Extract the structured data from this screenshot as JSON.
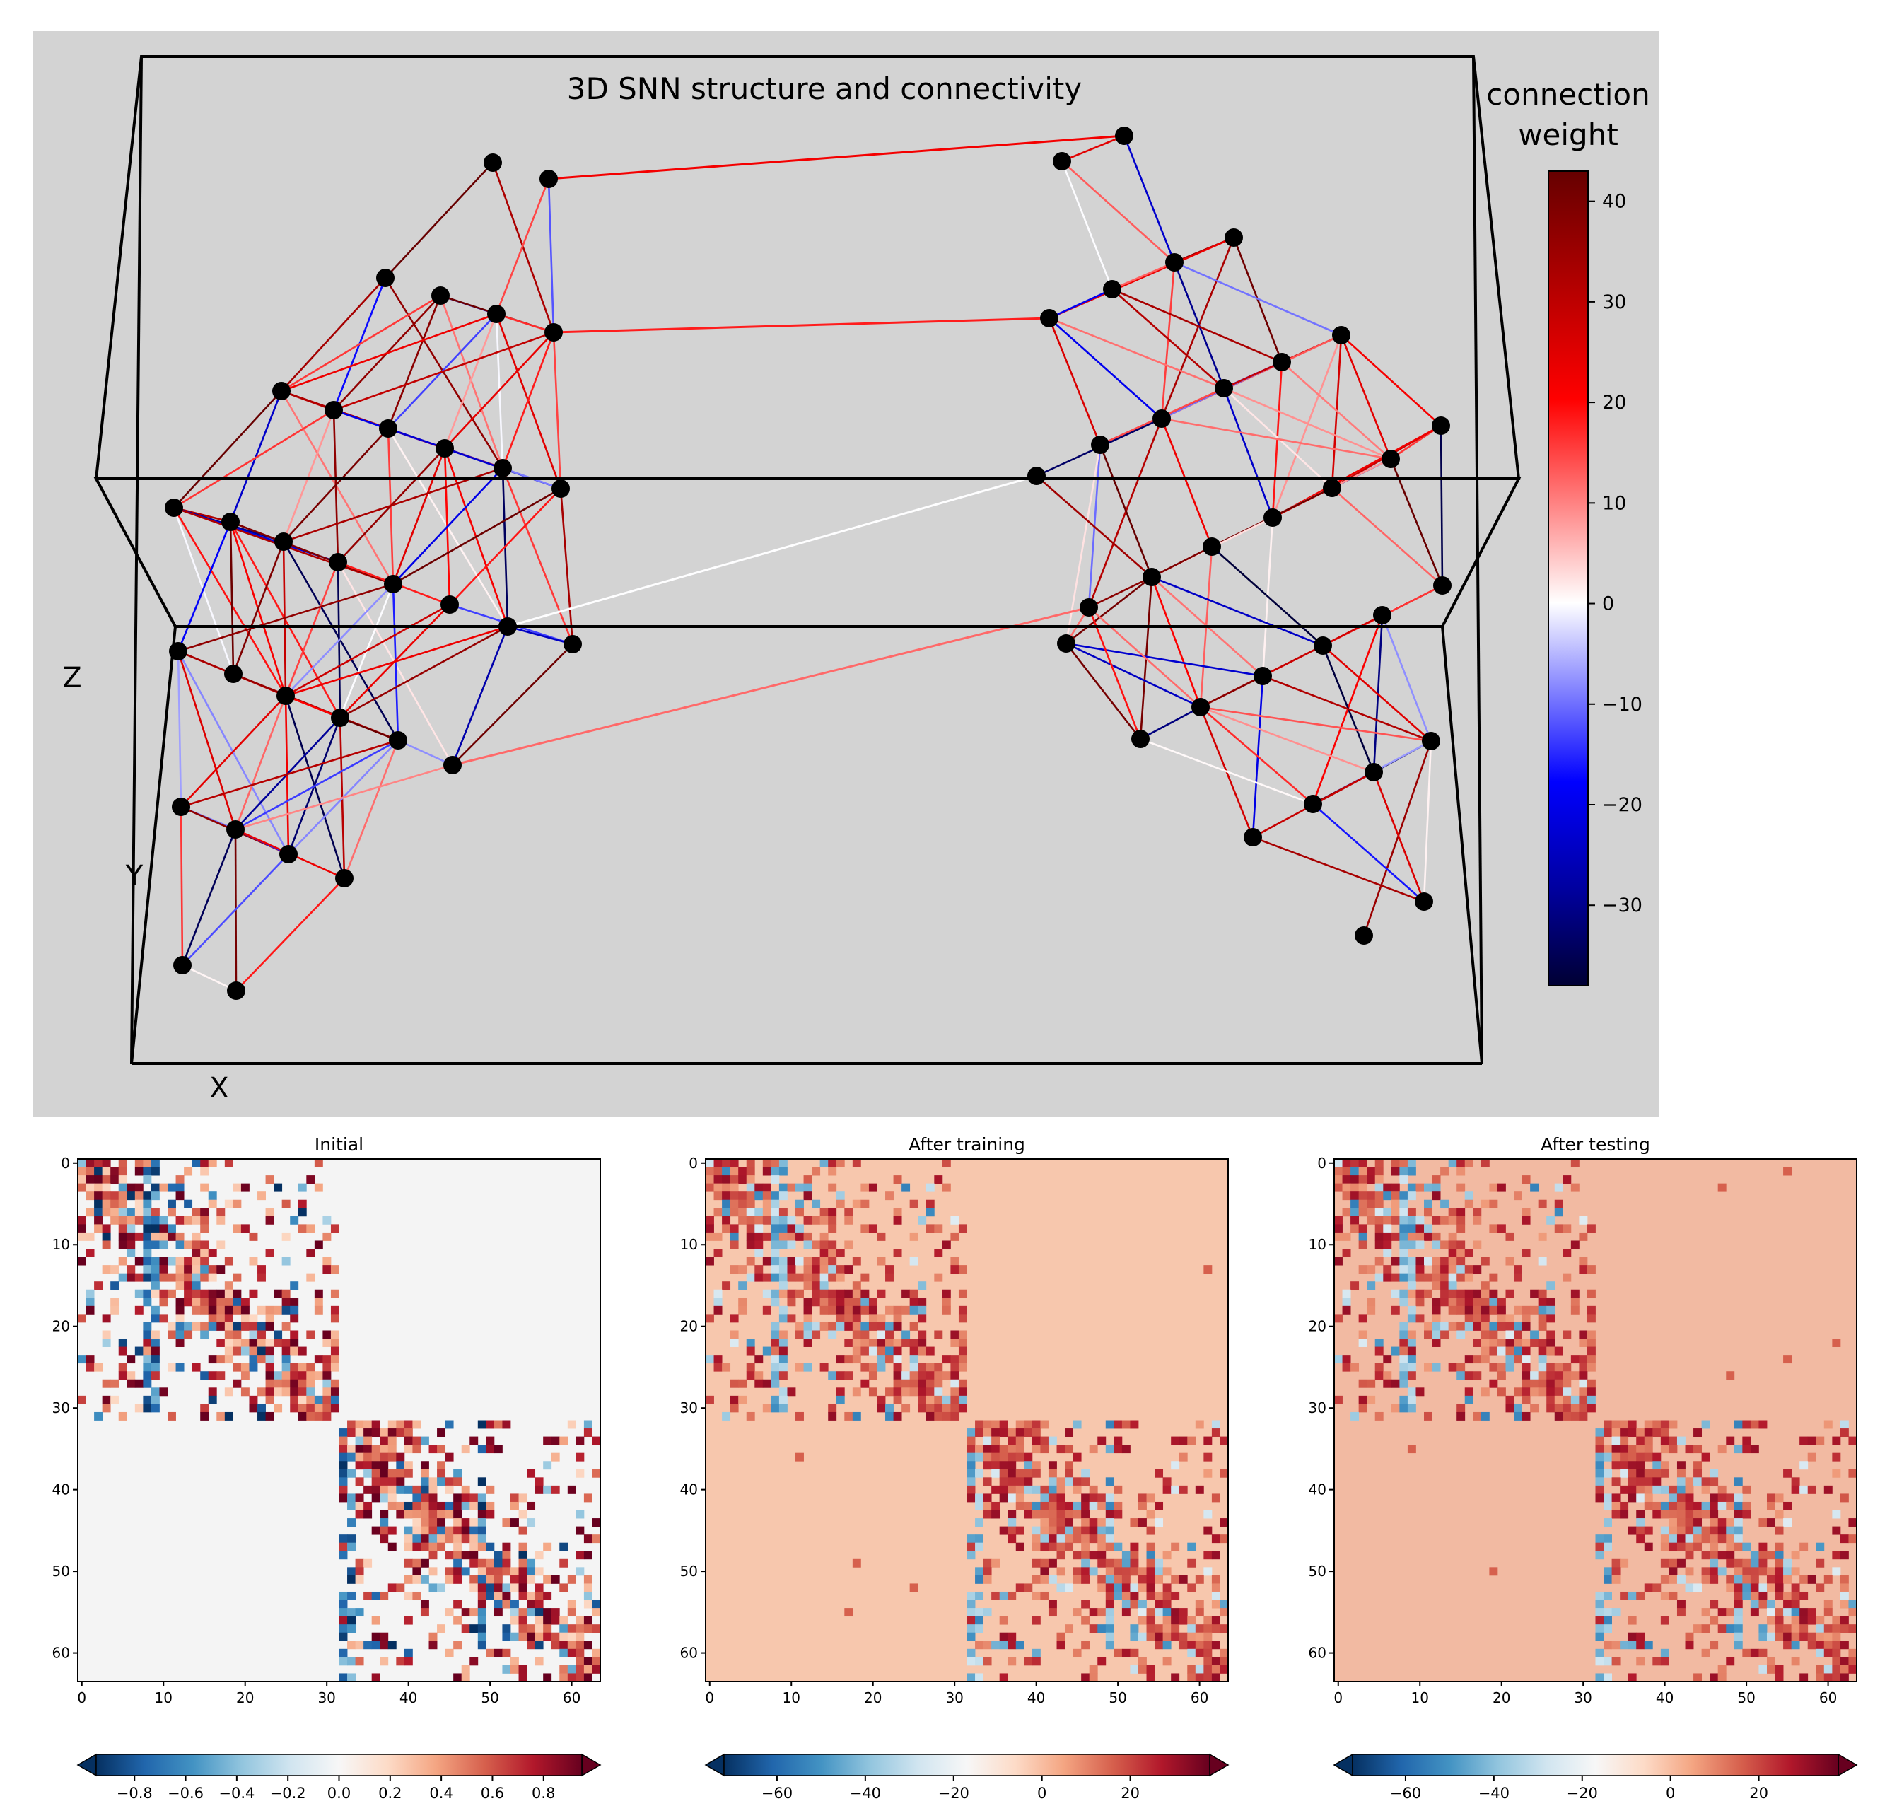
{
  "chart_data": [
    {
      "type": "network-3d",
      "title": "3D SNN structure and connectivity",
      "axis_labels": {
        "x": "X",
        "y": "Y",
        "z": "Z"
      },
      "colorbar": {
        "label_line1": "connection",
        "label_line2": "weight",
        "range": [
          -38,
          43
        ],
        "ticks": [
          40,
          30,
          20,
          10,
          0,
          -10,
          -20,
          -30
        ],
        "tick_labels": [
          "40",
          "30",
          "20",
          "10",
          "0",
          "−10",
          "−20",
          "−30"
        ]
      },
      "neurons_per_cluster": 32,
      "clusters": 2
    },
    {
      "type": "heatmap",
      "title": "Initial",
      "matrix_size": 64,
      "x_ticks": [
        0,
        10,
        20,
        30,
        40,
        50,
        60
      ],
      "y_ticks": [
        0,
        10,
        20,
        30,
        40,
        50,
        60
      ],
      "colorbar": {
        "range": [
          -0.95,
          0.95
        ],
        "ticks": [
          -0.8,
          -0.6,
          -0.4,
          -0.2,
          0.0,
          0.2,
          0.4,
          0.6,
          0.8
        ],
        "tick_labels": [
          "−0.8",
          "−0.6",
          "−0.4",
          "−0.2",
          "0.0",
          "0.2",
          "0.4",
          "0.6",
          "0.8"
        ]
      }
    },
    {
      "type": "heatmap",
      "title": "After training",
      "matrix_size": 64,
      "x_ticks": [
        0,
        10,
        20,
        30,
        40,
        50,
        60
      ],
      "y_ticks": [
        0,
        10,
        20,
        30,
        40,
        50,
        60
      ],
      "colorbar": {
        "range": [
          -72,
          38
        ],
        "ticks": [
          -60,
          -40,
          -20,
          0,
          20
        ],
        "tick_labels": [
          "−60",
          "−40",
          "−20",
          "0",
          "20"
        ]
      }
    },
    {
      "type": "heatmap",
      "title": "After testing",
      "matrix_size": 64,
      "x_ticks": [
        0,
        10,
        20,
        30,
        40,
        50,
        60
      ],
      "y_ticks": [
        0,
        10,
        20,
        30,
        40,
        50,
        60
      ],
      "colorbar": {
        "range": [
          -72,
          38
        ],
        "ticks": [
          -60,
          -40,
          -20,
          0,
          20
        ],
        "tick_labels": [
          "−60",
          "−40",
          "−20",
          "0",
          "20"
        ]
      }
    }
  ],
  "colors": {
    "panel_bg": "#d3d3d3",
    "neuron": "#000000",
    "frame": "#000000"
  }
}
